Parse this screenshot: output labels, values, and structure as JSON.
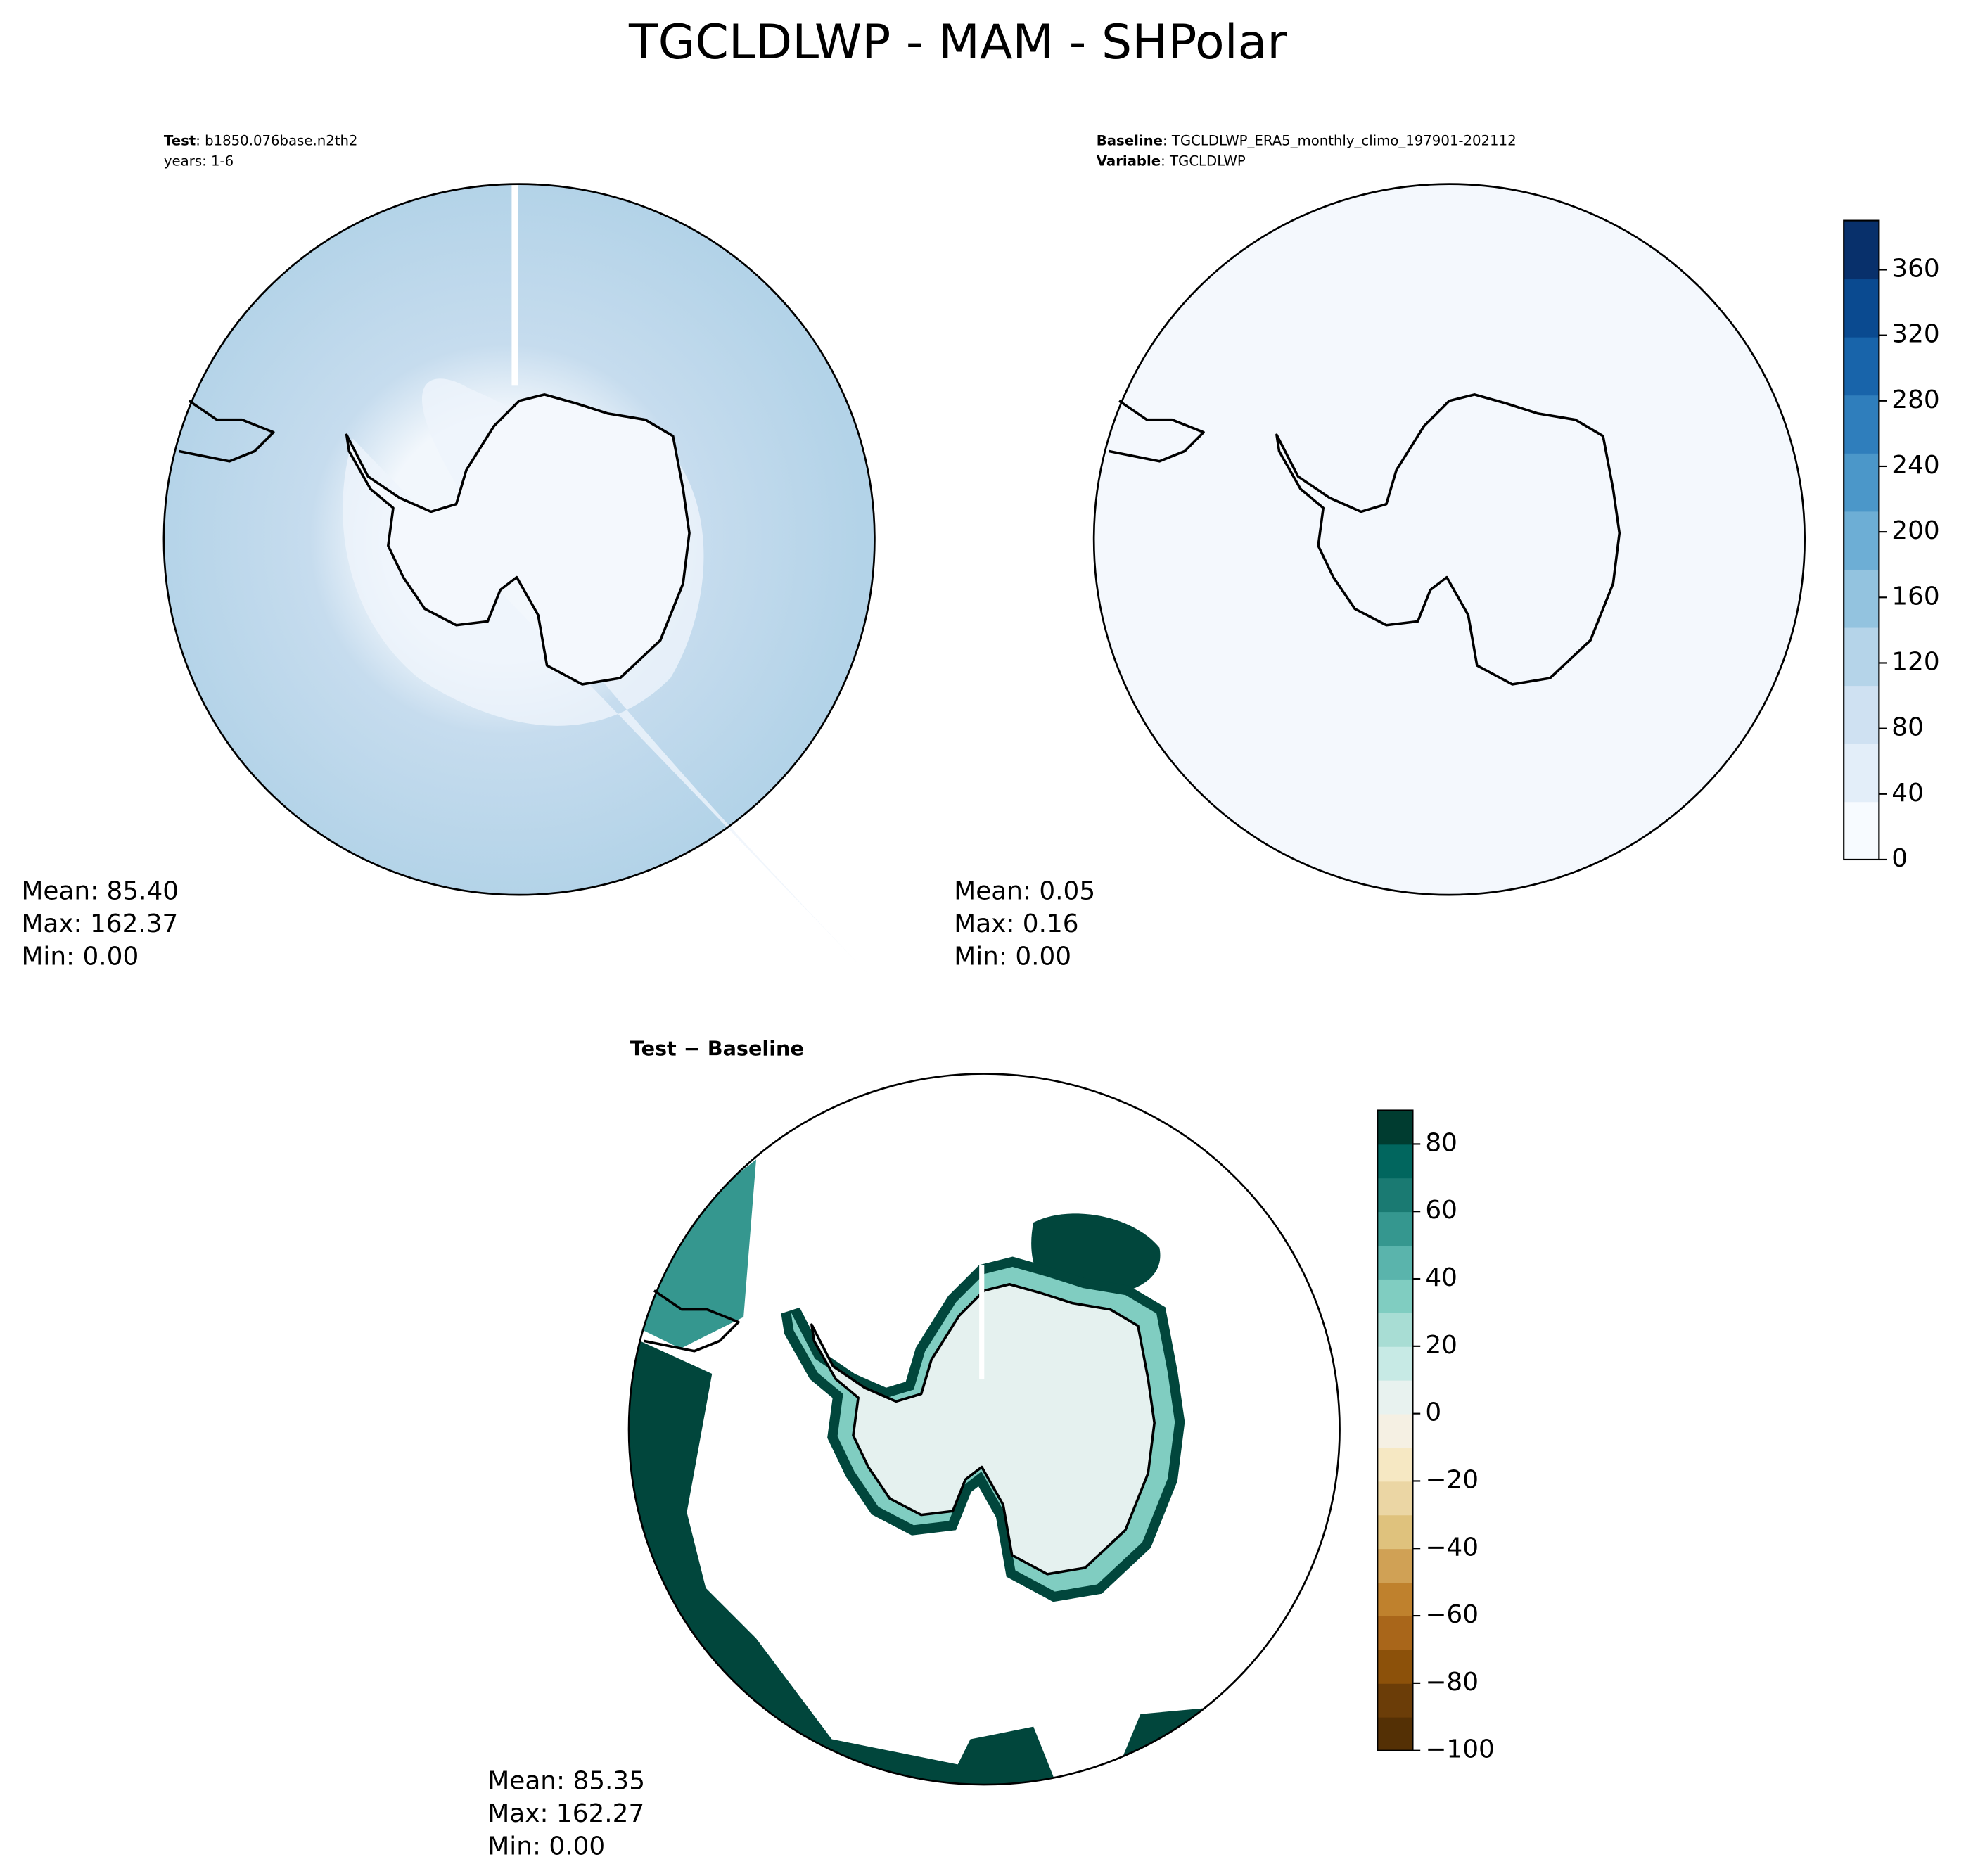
{
  "title": "TGCLDLWP - MAM - SHPolar",
  "panels": [
    {
      "header": [
        {
          "bold": "Test",
          "text": ": b1850.076base.n2th2"
        },
        {
          "text": "years: 1-6"
        }
      ],
      "stats": [
        "Mean: 85.40",
        "Max: 162.37",
        "Min:  0.00"
      ]
    },
    {
      "header": [
        {
          "bold": "Baseline",
          "text": ": TGCLDLWP_ERA5_monthly_climo_197901-202112"
        },
        {
          "bold": "Variable",
          "text": ": TGCLDLWP"
        }
      ],
      "stats": [
        "Mean:  0.05",
        "Max:  0.16",
        "Min:  0.00"
      ]
    },
    {
      "header": [
        {
          "bold": "Test − Baseline"
        }
      ],
      "stats": [
        "Mean: 85.35",
        "Max: 162.27",
        "Min:  0.00"
      ]
    }
  ],
  "colorbars": [
    {
      "lim": [
        0,
        390
      ],
      "ticks": [
        0,
        40,
        80,
        120,
        160,
        200,
        240,
        280,
        320,
        360
      ],
      "colors": [
        "#f7fbff",
        "#e3eef9",
        "#cfe1f2",
        "#b5d4e9",
        "#93c3df",
        "#6daed5",
        "#4b97c9",
        "#2f7ebc",
        "#1864aa",
        "#0a4a90",
        "#08306b"
      ]
    },
    {
      "lim": [
        -100,
        90
      ],
      "ticks": [
        {
          "value": -100,
          "label": "−100"
        },
        {
          "value": -80,
          "label": "−80"
        },
        {
          "value": -60,
          "label": "−60"
        },
        {
          "value": -40,
          "label": "−40"
        },
        {
          "value": -20,
          "label": "−20"
        },
        0,
        20,
        40,
        60,
        80
      ],
      "colors": [
        "#543005",
        "#6b3d08",
        "#8c510a",
        "#a9661a",
        "#bf812d",
        "#d0a155",
        "#dfc27d",
        "#ebd6a4",
        "#f6e8c3",
        "#f5f0e3",
        "#e8f2ef",
        "#c7eae5",
        "#a8ddd4",
        "#80cdc1",
        "#5ab4ac",
        "#35978f",
        "#1a7a72",
        "#01665e",
        "#003c30"
      ]
    }
  ]
}
